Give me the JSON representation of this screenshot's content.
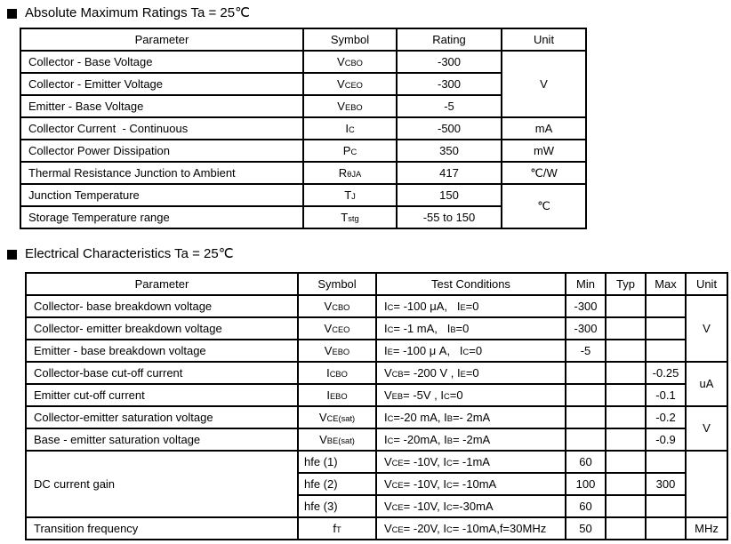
{
  "colors": {
    "text": "#000000",
    "border": "#000000",
    "background": "#ffffff"
  },
  "sections": [
    {
      "title": "Absolute Maximum Ratings Ta = 25℃",
      "table": {
        "headers": [
          "Parameter",
          "Symbol",
          "Rating",
          "Unit"
        ],
        "rows": [
          {
            "cells": [
              {
                "t": "Collector - Base Voltage"
              },
              {
                "t": "V~CBO~"
              },
              {
                "t": "-300"
              },
              {
                "t": "V",
                "rowspan": 3
              }
            ]
          },
          {
            "cells": [
              {
                "t": "Collector - Emitter Voltage"
              },
              {
                "t": "V~CEO~"
              },
              {
                "t": "-300"
              }
            ]
          },
          {
            "cells": [
              {
                "t": "Emitter - Base Voltage"
              },
              {
                "t": "V~EBO~"
              },
              {
                "t": "-5"
              }
            ]
          },
          {
            "cells": [
              {
                "t": "Collector Current  - Continuous"
              },
              {
                "t": "I~C~"
              },
              {
                "t": "-500"
              },
              {
                "t": "mA"
              }
            ]
          },
          {
            "cells": [
              {
                "t": "Collector Power Dissipation"
              },
              {
                "t": "P~C~"
              },
              {
                "t": "350"
              },
              {
                "t": "mW"
              }
            ]
          },
          {
            "cells": [
              {
                "t": "Thermal Resistance Junction to Ambient"
              },
              {
                "t": "R~θJA~"
              },
              {
                "t": "417"
              },
              {
                "t": "℃/W"
              }
            ]
          },
          {
            "cells": [
              {
                "t": "Junction Temperature"
              },
              {
                "t": "T~J~"
              },
              {
                "t": "150"
              },
              {
                "t": "℃",
                "rowspan": 2
              }
            ]
          },
          {
            "cells": [
              {
                "t": "Storage Temperature range"
              },
              {
                "t": "T~stg~"
              },
              {
                "t": "-55 to 150"
              }
            ]
          }
        ]
      }
    },
    {
      "title": "Electrical Characteristics Ta = 25℃",
      "table": {
        "headers": [
          "Parameter",
          "Symbol",
          "Test Conditions",
          "Min",
          "Typ",
          "Max",
          "Unit"
        ],
        "rows": [
          {
            "cells": [
              {
                "t": "Collector- base breakdown voltage"
              },
              {
                "t": "V~CBO~"
              },
              {
                "t": "I~C~= -100 μA,   I~E~=0"
              },
              {
                "t": "-300"
              },
              {
                "t": ""
              },
              {
                "t": ""
              },
              {
                "t": "V",
                "rowspan": 3
              }
            ]
          },
          {
            "cells": [
              {
                "t": "Collector- emitter breakdown voltage"
              },
              {
                "t": "V~CEO~"
              },
              {
                "t": "I~C~= -1 mA,   I~B~=0"
              },
              {
                "t": "-300"
              },
              {
                "t": ""
              },
              {
                "t": ""
              }
            ]
          },
          {
            "cells": [
              {
                "t": "Emitter - base breakdown voltage"
              },
              {
                "t": "V~EBO~"
              },
              {
                "t": "I~E~= -100 μ A,   I~C~=0"
              },
              {
                "t": "-5"
              },
              {
                "t": ""
              },
              {
                "t": ""
              }
            ]
          },
          {
            "cells": [
              {
                "t": "Collector-base cut-off current"
              },
              {
                "t": "I~CBO~"
              },
              {
                "t": "V~CB~= -200 V , I~E~=0"
              },
              {
                "t": ""
              },
              {
                "t": ""
              },
              {
                "t": "-0.25"
              },
              {
                "t": "uA",
                "rowspan": 2
              }
            ]
          },
          {
            "cells": [
              {
                "t": "Emitter cut-off current"
              },
              {
                "t": "I~EBO~"
              },
              {
                "t": "V~EB~= -5V , I~C~=0"
              },
              {
                "t": ""
              },
              {
                "t": ""
              },
              {
                "t": "-0.1"
              }
            ]
          },
          {
            "cells": [
              {
                "t": "Collector-emitter saturation voltage"
              },
              {
                "t": "V~CE(sat)~"
              },
              {
                "t": "I~C~=-20 mA, I~B~=- 2mA"
              },
              {
                "t": ""
              },
              {
                "t": ""
              },
              {
                "t": "-0.2"
              },
              {
                "t": "V",
                "rowspan": 2
              }
            ]
          },
          {
            "cells": [
              {
                "t": "Base - emitter saturation voltage"
              },
              {
                "t": "V~BE(sat)~"
              },
              {
                "t": "I~C~= -20mA, I~B~= -2mA"
              },
              {
                "t": ""
              },
              {
                "t": ""
              },
              {
                "t": "-0.9"
              }
            ]
          },
          {
            "cells": [
              {
                "t": "DC current gain",
                "rowspan": 3
              },
              {
                "t": "hfe (1)",
                "align": "left-sm"
              },
              {
                "t": "V~CE~= -10V, I~C~= -1mA"
              },
              {
                "t": "60"
              },
              {
                "t": ""
              },
              {
                "t": ""
              },
              {
                "t": "",
                "rowspan": 3
              }
            ]
          },
          {
            "cells": [
              {
                "t": "hfe (2)",
                "align": "left-sm"
              },
              {
                "t": "V~CE~= -10V, I~C~= -10mA"
              },
              {
                "t": "100"
              },
              {
                "t": ""
              },
              {
                "t": "300"
              }
            ]
          },
          {
            "cells": [
              {
                "t": "hfe (3)",
                "align": "left-sm"
              },
              {
                "t": "V~CE~= -10V, I~C~=-30mA"
              },
              {
                "t": "60"
              },
              {
                "t": ""
              },
              {
                "t": ""
              }
            ]
          },
          {
            "cells": [
              {
                "t": "Transition frequency"
              },
              {
                "t": "f~T~"
              },
              {
                "t": "V~CE~= -20V, I~C~= -10mA,f=30MHz"
              },
              {
                "t": "50"
              },
              {
                "t": ""
              },
              {
                "t": ""
              },
              {
                "t": "MHz"
              }
            ]
          }
        ]
      }
    }
  ]
}
